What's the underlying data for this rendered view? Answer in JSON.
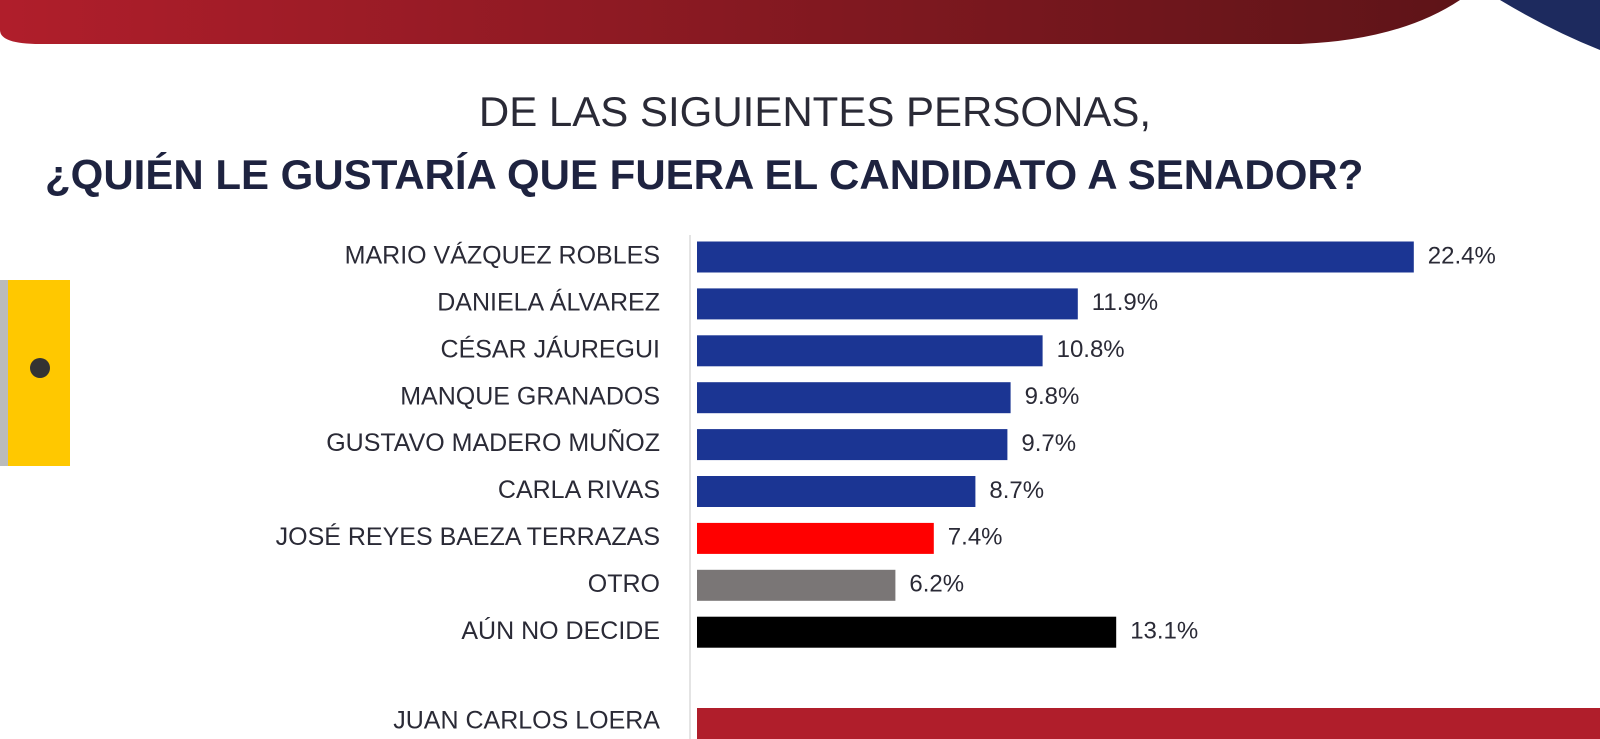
{
  "chart_data": {
    "type": "bar",
    "orientation": "horizontal",
    "title": "DE LAS SIGUIENTES PERSONAS,",
    "subtitle": "¿QUIÉN LE GUSTARÍA QUE FUERA EL CANDIDATO A SENADOR?",
    "categories": [
      "MARIO VÁZQUEZ ROBLES",
      "DANIELA ÁLVAREZ",
      "CÉSAR JÁUREGUI",
      "MANQUE GRANADOS",
      "GUSTAVO  MADERO MUÑOZ",
      "CARLA RIVAS",
      "JOSÉ REYES BAEZA TERRAZAS",
      "OTRO",
      "AÚN NO DECIDE"
    ],
    "values": [
      22.4,
      11.9,
      10.8,
      9.8,
      9.7,
      8.7,
      7.4,
      6.2,
      13.1
    ],
    "value_labels": [
      "22.4%",
      "11.9%",
      "10.8%",
      "9.8%",
      "9.7%",
      "8.7%",
      "7.4%",
      "6.2%",
      "13.1%"
    ],
    "colors": [
      "#1b3593",
      "#1b3593",
      "#1b3593",
      "#1b3593",
      "#1b3593",
      "#1b3593",
      "#ff0000",
      "#7a7676",
      "#000000"
    ],
    "extra_label": "JUAN CARLOS LOERA"
  }
}
